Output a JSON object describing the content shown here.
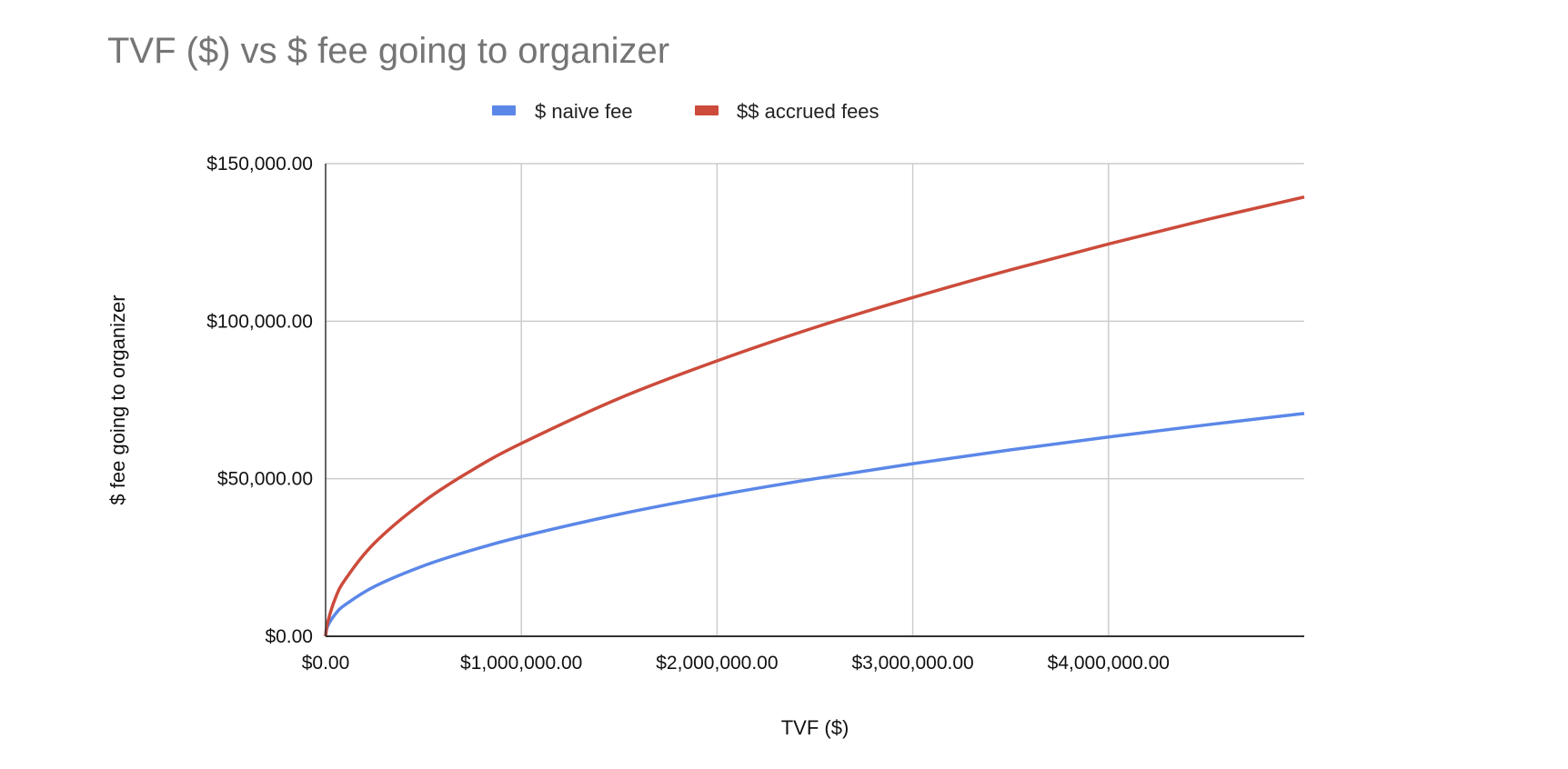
{
  "chart_data": {
    "type": "line",
    "title": "TVF ($) vs $ fee going to organizer",
    "xlabel": "TVF ($)",
    "ylabel": "$ fee going to organizer",
    "xlim": [
      0,
      5000000
    ],
    "ylim": [
      0,
      150000
    ],
    "grid": true,
    "legend_position": "top",
    "x_ticks": [
      0,
      1000000,
      2000000,
      3000000,
      4000000
    ],
    "x_tick_labels": [
      "$0.00",
      "$1,000,000.00",
      "$2,000,000.00",
      "$3,000,000.00",
      "$4,000,000.00"
    ],
    "y_ticks": [
      0,
      50000,
      100000,
      150000
    ],
    "y_tick_labels": [
      "$0.00",
      "$50,000.00",
      "$100,000.00",
      "$150,000.00"
    ],
    "x": [
      0,
      10000,
      50000,
      100000,
      250000,
      500000,
      750000,
      1000000,
      1500000,
      2000000,
      2500000,
      3000000,
      3500000,
      4000000,
      4500000,
      5000000
    ],
    "series": [
      {
        "name": "$ naive fee",
        "color": "#5b87e8",
        "values": [
          0,
          3162,
          7071,
          10000,
          15811,
          22361,
          27386,
          31623,
          38730,
          44721,
          50000,
          54772,
          59161,
          63246,
          67082,
          70711
        ]
      },
      {
        "name": "$$ accrued fees",
        "color": "#cc4b3b",
        "values": [
          0,
          4300,
          12100,
          18000,
          29600,
          42700,
          52800,
          61200,
          75500,
          87400,
          98000,
          107500,
          116300,
          124500,
          132200,
          139400
        ]
      }
    ]
  }
}
